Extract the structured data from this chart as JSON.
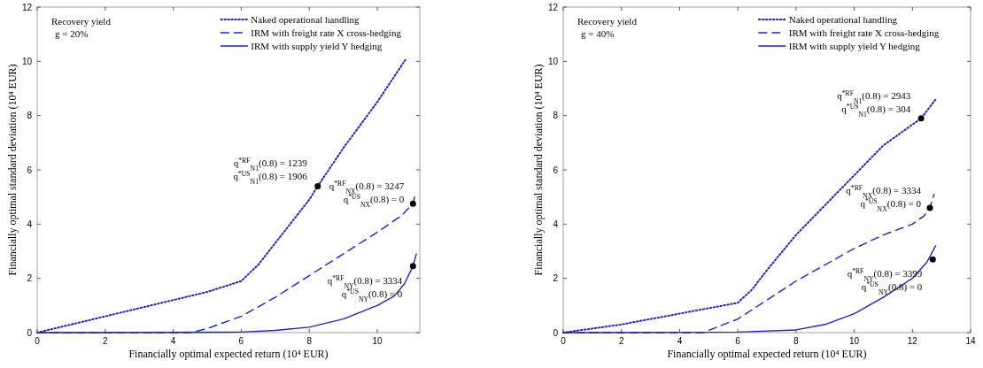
{
  "chart_data": [
    {
      "type": "line",
      "xlabel": "Financially optimal expected return (10⁴ EUR)",
      "ylabel": "Financially optimal standard deviation (10⁴ EUR)",
      "xlim": [
        0,
        11.25
      ],
      "xticks": [
        0,
        2,
        4,
        6,
        8,
        10
      ],
      "ylim": [
        0,
        12
      ],
      "yticks": [
        0,
        2,
        4,
        6,
        8,
        10,
        12
      ],
      "grid": false,
      "legend": "top right",
      "marker": "none",
      "series": [
        {
          "name": "Naked operational handling",
          "color": "#2222bb",
          "line_style": "dotted",
          "x": [
            0,
            1,
            2,
            3,
            4,
            5,
            6,
            6.5,
            7,
            7.5,
            8,
            8.25,
            9,
            10,
            10.85
          ],
          "values": [
            0,
            0.3,
            0.6,
            0.9,
            1.2,
            1.5,
            1.9,
            2.5,
            3.3,
            4.1,
            4.9,
            5.4,
            6.8,
            8.5,
            10.1
          ]
        },
        {
          "name": "IRM with freight rate X cross-hedging",
          "color": "#2222bb",
          "line_style": "dashed",
          "x": [
            0,
            4.5,
            5,
            6,
            7,
            8,
            9,
            10,
            10.7,
            11.05,
            11.1
          ],
          "values": [
            0,
            0,
            0.15,
            0.6,
            1.3,
            2.1,
            2.9,
            3.7,
            4.3,
            4.75,
            5.0
          ]
        },
        {
          "name": "IRM with supply yield Y hedging",
          "color": "#2222bb",
          "line_style": "solid",
          "x": [
            0,
            6,
            7,
            8,
            9,
            10,
            10.5,
            10.8,
            11.05,
            11.15
          ],
          "values": [
            0,
            0.02,
            0.08,
            0.2,
            0.5,
            1.0,
            1.35,
            1.8,
            2.45,
            2.9
          ]
        },
        {
          "type": "scatter",
          "marker": "circle",
          "color": "#000000",
          "x": [
            8.25,
            11.05,
            11.05
          ],
          "values": [
            5.4,
            4.75,
            2.45
          ]
        }
      ],
      "annotations": [
        "Recovery yield\ng = 20%",
        "q$^{*RF}$$_{N1}$(0.8) = 1239\nq$^{*US}$$_{N1}$(0.8) = 1906",
        {
          "text": "q$^{*RF}$$_{NX}$(0.8) = 3247\nq$^{*US}$$_{NX}$(0.8) = 0",
          "x": 11.05,
          "y": 4.75
        },
        {
          "text": "q$^{*RF}$$_{NY}$(0.8) = 3334\nq$^{*US}$$_{NY}$(0.8) = 0",
          "x": 11.05,
          "y": 2.45
        }
      ]
    },
    {
      "type": "line",
      "xlabel": "Financially optimal expected return (10⁴ EUR)",
      "ylabel": "Financially optimal standard deviation (10⁴ EUR)",
      "xlim": [
        0,
        14
      ],
      "xticks": [
        0,
        2,
        4,
        6,
        8,
        10,
        12,
        14
      ],
      "ylim": [
        0,
        12
      ],
      "yticks": [
        0,
        2,
        4,
        6,
        8,
        10,
        12
      ],
      "grid": false,
      "legend": "top right",
      "marker": "none",
      "series": [
        {
          "name": "Naked operational handling",
          "color": "#2222bb",
          "line_style": "dotted",
          "x": [
            0,
            1,
            2,
            3,
            4,
            5,
            6,
            6.5,
            7,
            8,
            9,
            10,
            11,
            12.3,
            12.8
          ],
          "values": [
            0,
            0.15,
            0.3,
            0.5,
            0.7,
            0.9,
            1.1,
            1.6,
            2.3,
            3.6,
            4.7,
            5.8,
            6.9,
            7.9,
            8.6
          ]
        },
        {
          "name": "IRM with freight rate X cross-hedging",
          "color": "#2222bb",
          "line_style": "dashed",
          "x": [
            0,
            4.8,
            6,
            7,
            8,
            9,
            10,
            11,
            12,
            12.4,
            12.6,
            12.75
          ],
          "values": [
            0,
            0,
            0.5,
            1.2,
            1.9,
            2.5,
            3.1,
            3.6,
            4.0,
            4.3,
            4.6,
            5.1
          ]
        },
        {
          "name": "IRM with supply yield Y hedging",
          "color": "#2222bb",
          "line_style": "solid",
          "x": [
            0,
            6,
            8,
            9,
            10,
            11,
            12,
            12.5,
            12.8
          ],
          "values": [
            0,
            0.02,
            0.1,
            0.3,
            0.7,
            1.3,
            2.0,
            2.6,
            3.2
          ]
        },
        {
          "type": "scatter",
          "marker": "circle",
          "color": "#000000",
          "x": [
            12.3,
            12.6,
            12.7
          ],
          "values": [
            7.9,
            4.6,
            2.7
          ]
        }
      ],
      "annotations": [
        "Recovery yield\ng = 40%",
        "q$^{*RF}$$_{N1}$(0.8) = 2943\nq$^{*US}$$_{N1}$(0.8) = 304",
        {
          "text": "q$^{*RF}$$_{NX}$(0.8) = 3334\nq$^{*US}$$_{NX}$(0.8) = 0",
          "x": 12.6,
          "y": 4.6
        },
        {
          "text": "q$^{*RF}$$_{NY}$(0.8) = 3399\nq$^{*US}$$_{NY}$(0.8) = 0",
          "x": 12.7,
          "y": 2.7
        }
      ]
    }
  ]
}
